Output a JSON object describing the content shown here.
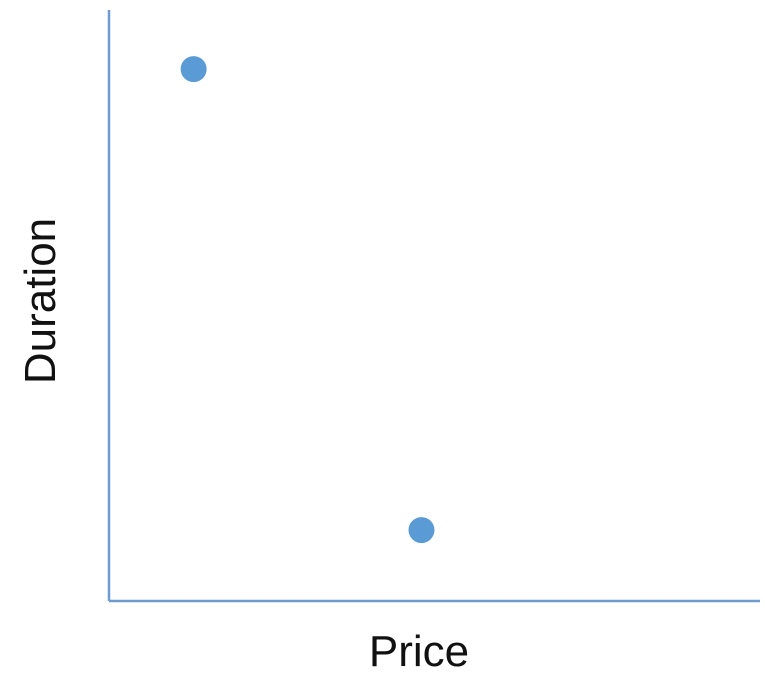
{
  "chart_data": {
    "type": "scatter",
    "title": "",
    "xlabel": "Price",
    "ylabel": "Duration",
    "xlim": [
      0,
      100
    ],
    "ylim": [
      0,
      100
    ],
    "grid": false,
    "tick_labels": false,
    "series": [
      {
        "color": "#5b9bd5",
        "points": [
          {
            "x": 13,
            "y": 90
          },
          {
            "x": 48,
            "y": 12
          }
        ]
      }
    ]
  },
  "colors": {
    "axis": "#6f9bd1",
    "marker": "#5b9bd5",
    "text": "#111111"
  }
}
